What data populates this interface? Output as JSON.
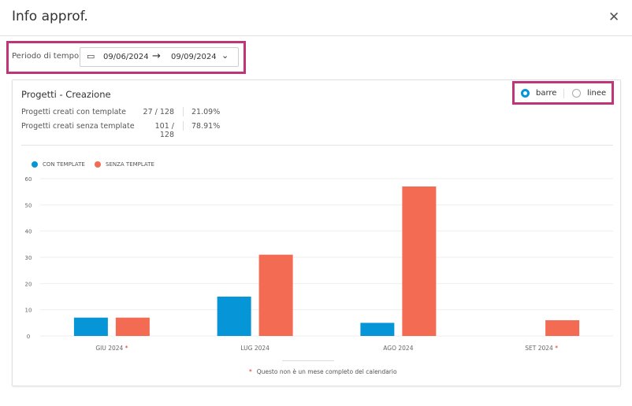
{
  "dialog": {
    "title": "Info approf.",
    "close_icon": "close-icon"
  },
  "period": {
    "label": "Periodo di tempo",
    "start": "09/06/2024",
    "arrow": "→",
    "end": "09/09/2024"
  },
  "card": {
    "title": "Progetti - Creazione",
    "stats": [
      {
        "label": "Progetti creati con template",
        "count": "27 / 128",
        "percent": "21.09%"
      },
      {
        "label": "Progetti creati senza template",
        "count": "101 / 128",
        "percent": "78.91%"
      }
    ],
    "view": {
      "options": [
        "barre",
        "linee"
      ],
      "selected": "barre"
    },
    "footnote_mark": "*",
    "footnote": "Questo non è un mese completo del calendario"
  },
  "chart_data": {
    "type": "bar",
    "categories": [
      "GIU 2024",
      "LUG 2024",
      "AGO 2024",
      "SET 2024"
    ],
    "incomplete": [
      true,
      false,
      false,
      true
    ],
    "series": [
      {
        "name": "CON TEMPLATE",
        "color": "#0696d7",
        "values": [
          7,
          15,
          5,
          0
        ]
      },
      {
        "name": "SENZA TEMPLATE",
        "color": "#f26b52",
        "values": [
          7,
          31,
          57,
          6
        ]
      }
    ],
    "yticks": [
      0,
      10,
      20,
      30,
      40,
      50,
      60
    ],
    "ylim": [
      0,
      60
    ],
    "legend": "top-left",
    "grid": true
  }
}
